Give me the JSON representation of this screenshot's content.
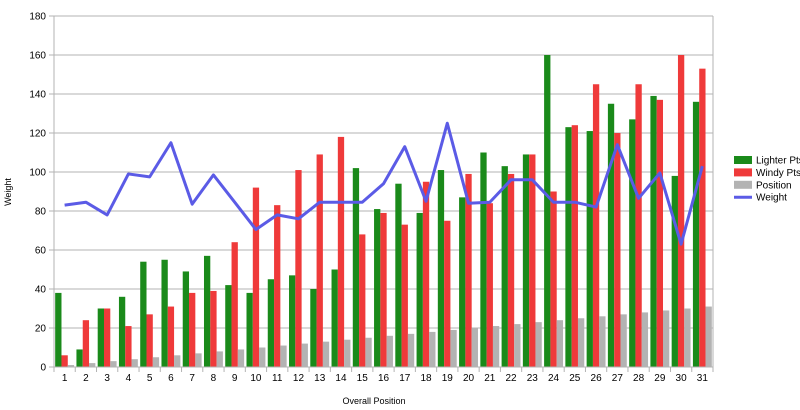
{
  "chart_data": {
    "type": "bar",
    "title": "",
    "xlabel": "Overall Position",
    "ylabel": "Weight",
    "ylim": [
      0,
      180
    ],
    "yticks": [
      0,
      20,
      40,
      60,
      80,
      100,
      120,
      140,
      160,
      180
    ],
    "grid": "horizontal",
    "legend_position": "right",
    "categories": [
      "1",
      "2",
      "3",
      "4",
      "5",
      "6",
      "7",
      "8",
      "9",
      "10",
      "11",
      "12",
      "13",
      "14",
      "15",
      "16",
      "17",
      "18",
      "19",
      "20",
      "21",
      "22",
      "23",
      "24",
      "25",
      "26",
      "27",
      "28",
      "29",
      "30",
      "31"
    ],
    "series": [
      {
        "name": "Lighter Pts",
        "kind": "bar",
        "color": "#1a8a1a",
        "values": [
          38,
          9,
          30,
          36,
          54,
          55,
          49,
          57,
          42,
          38,
          45,
          47,
          40,
          50,
          102,
          81,
          94,
          79,
          101,
          87,
          110,
          103,
          109,
          160,
          123,
          121,
          135,
          127,
          139,
          98,
          136
        ]
      },
      {
        "name": "Windy Pts",
        "kind": "bar",
        "color": "#ef3a3a",
        "values": [
          6,
          24,
          30,
          21,
          27,
          31,
          38,
          39,
          64,
          92,
          83,
          101,
          109,
          118,
          68,
          79,
          73,
          95,
          75,
          99,
          84,
          99,
          109,
          90,
          124,
          145,
          120,
          145,
          137,
          160,
          153
        ]
      },
      {
        "name": "Position",
        "kind": "bar",
        "color": "#b3b3b3",
        "values": [
          1,
          2,
          3,
          4,
          5,
          6,
          7,
          8,
          9,
          10,
          11,
          12,
          13,
          14,
          15,
          16,
          17,
          18,
          19,
          20,
          21,
          22,
          23,
          24,
          25,
          26,
          27,
          28,
          29,
          30,
          31
        ]
      },
      {
        "name": "Weight",
        "kind": "line",
        "color": "#5b5be6",
        "values": [
          83,
          84.5,
          78,
          99,
          97.5,
          115,
          83.5,
          98.5,
          84.5,
          70.5,
          78,
          76,
          84.5,
          84.5,
          84.5,
          94,
          113,
          85,
          125,
          84,
          84.5,
          96,
          96,
          84.5,
          84.5,
          82,
          114,
          86.5,
          99.5,
          63,
          103
        ]
      }
    ]
  }
}
